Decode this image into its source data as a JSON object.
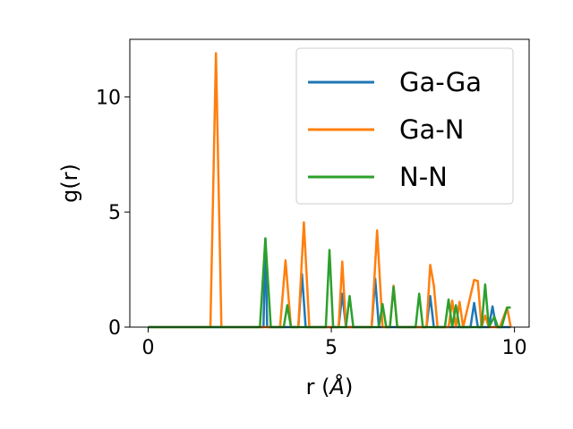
{
  "chart_data": {
    "type": "line",
    "title": "",
    "xlabel": "r (",
    "xlabel_symbol": "Å",
    "xlabel_close": ")",
    "ylabel": "g(r)",
    "xlim": [
      -0.5,
      10.4
    ],
    "ylim": [
      0,
      12.5
    ],
    "xticks": [
      0,
      5,
      10
    ],
    "xtick_labels": [
      "0",
      "5",
      "10"
    ],
    "yticks": [
      0,
      5,
      10
    ],
    "ytick_labels": [
      "0",
      "5",
      "10"
    ],
    "grid": false,
    "legend_position": "top-right",
    "series": [
      {
        "name": "Ga-Ga",
        "color": "#1f77b4",
        "x": [
          0,
          3.0,
          3.15,
          3.2,
          3.25,
          3.4,
          4.1,
          4.2,
          4.3,
          5.2,
          5.3,
          5.4,
          6.1,
          6.2,
          6.3,
          7.6,
          7.7,
          7.8,
          8.8,
          8.9,
          9.0,
          9.3,
          9.4,
          9.5,
          9.9
        ],
        "values": [
          0,
          0,
          0,
          3.85,
          0,
          0,
          0,
          2.3,
          0,
          0,
          1.45,
          0,
          0,
          2.1,
          0,
          0,
          1.35,
          0,
          0,
          1.05,
          0,
          0,
          0.9,
          0,
          0
        ]
      },
      {
        "name": "Ga-N",
        "color": "#ff7f0e",
        "x": [
          0,
          1.7,
          1.85,
          2.0,
          3.6,
          3.75,
          3.9,
          4.1,
          4.25,
          4.4,
          5.2,
          5.3,
          5.4,
          6.1,
          6.25,
          6.4,
          6.6,
          6.7,
          6.8,
          7.6,
          7.7,
          7.8,
          7.9,
          8.2,
          8.3,
          8.4,
          8.5,
          8.6,
          8.9,
          9.0,
          9.1,
          9.2,
          9.3,
          9.4,
          9.6,
          9.8,
          9.9
        ],
        "values": [
          0,
          0,
          11.9,
          0,
          0,
          2.9,
          0,
          0,
          4.55,
          0,
          0,
          2.85,
          0,
          0,
          4.2,
          0,
          0,
          1.8,
          0,
          0,
          2.7,
          1.8,
          0,
          0,
          1.15,
          0,
          1.1,
          0,
          2.05,
          2.0,
          0,
          0.5,
          0,
          0,
          0,
          0.85,
          0
        ]
      },
      {
        "name": "N-N",
        "color": "#2ca02c",
        "x": [
          0,
          3.05,
          3.2,
          3.35,
          3.7,
          3.8,
          3.9,
          4.85,
          4.95,
          5.05,
          5.4,
          5.5,
          5.6,
          6.3,
          6.4,
          6.5,
          6.6,
          6.7,
          6.8,
          7.3,
          7.4,
          7.5,
          8.1,
          8.2,
          8.3,
          8.4,
          8.5,
          9.1,
          9.2,
          9.3,
          9.45,
          9.55,
          9.65,
          9.8,
          9.9
        ],
        "values": [
          0,
          0,
          3.85,
          0,
          0,
          0.95,
          0,
          0,
          3.35,
          0,
          0,
          1.35,
          0,
          0,
          1.0,
          0,
          0,
          1.75,
          0,
          0,
          1.45,
          0,
          0,
          1.2,
          0,
          0.95,
          0,
          0,
          1.85,
          0,
          0.45,
          0,
          0,
          0.85,
          0.85
        ]
      }
    ]
  }
}
